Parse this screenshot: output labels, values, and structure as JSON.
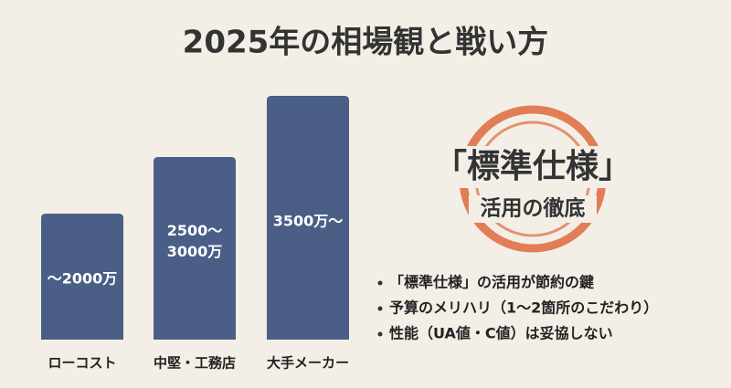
{
  "title": "2025年の相場観と戦い方",
  "bars": [
    {
      "label_lines": [
        "〜2000万"
      ],
      "category": "ローコスト"
    },
    {
      "label_lines": [
        "2500〜",
        "3000万"
      ],
      "category": "中堅・工務店"
    },
    {
      "label_lines": [
        "3500万〜"
      ],
      "category": "大手メーカー"
    }
  ],
  "stamp": {
    "main": "「標準仕様」",
    "sub": "活用の徹底"
  },
  "bullets": [
    "「標準仕様」の活用が節約の鍵",
    "予算のメリハリ（1〜2箇所のこだわり）",
    "性能（UA値・C値）は妥協しない"
  ]
}
